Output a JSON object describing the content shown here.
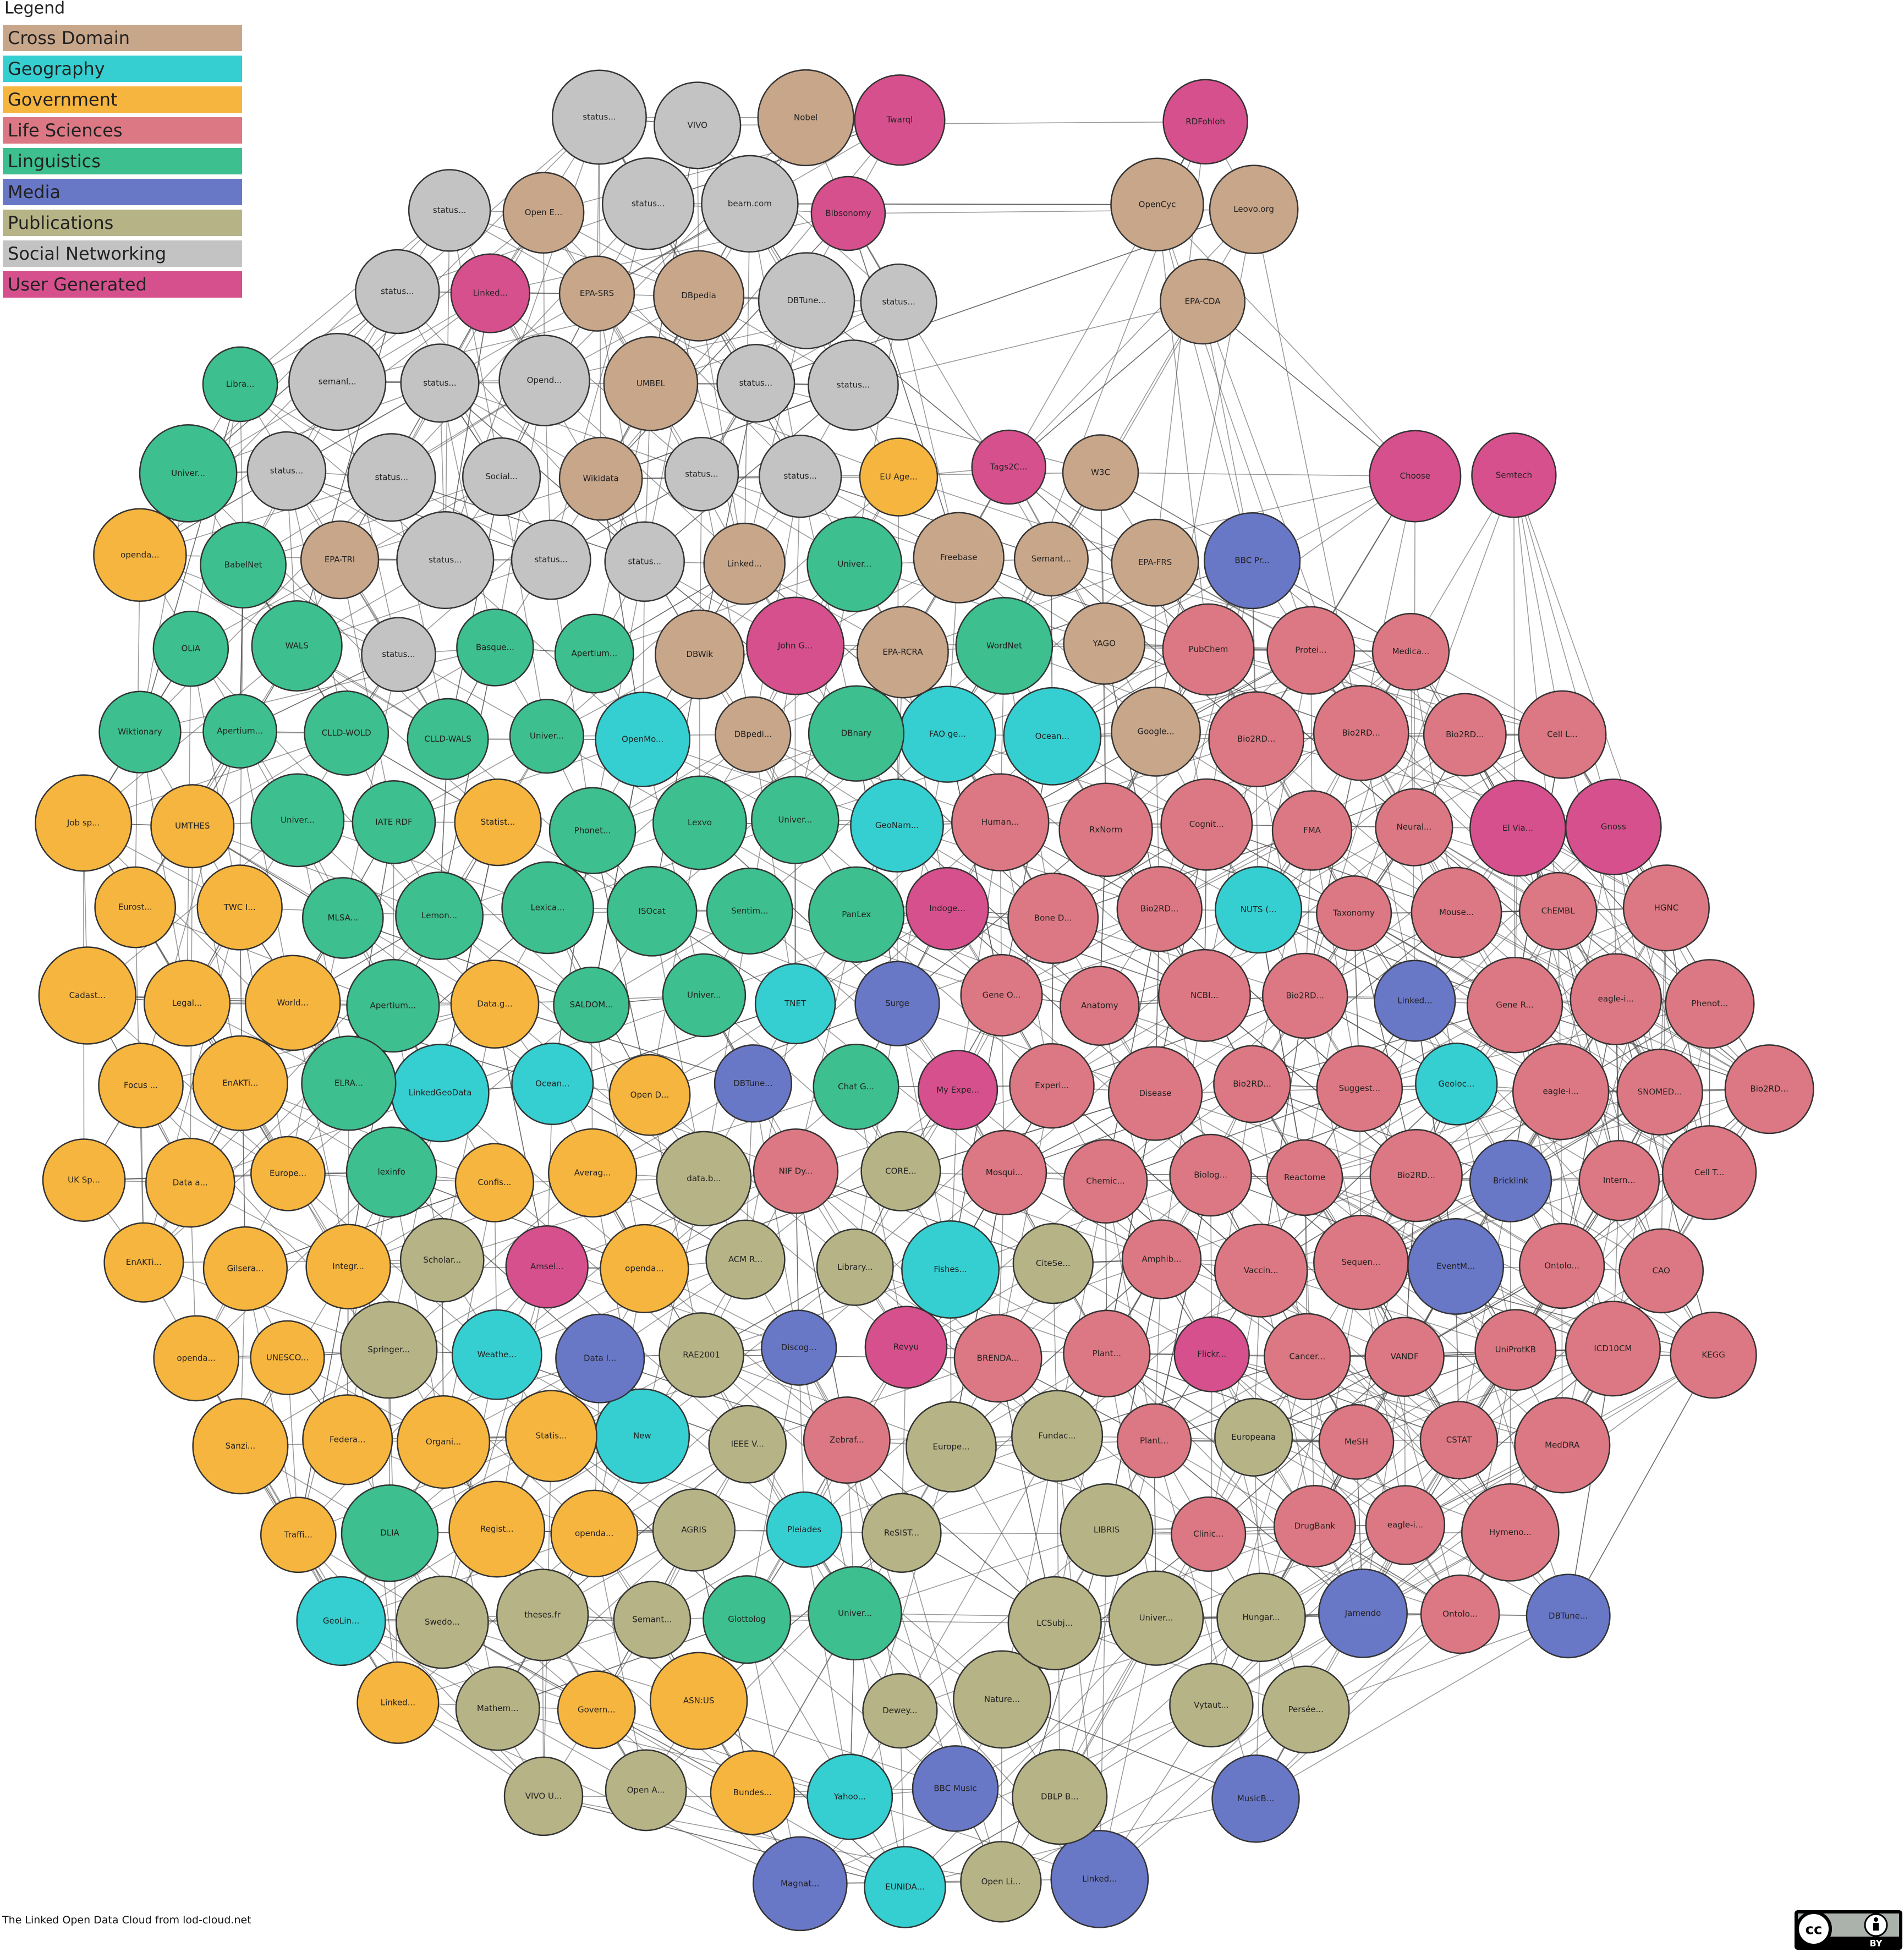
{
  "legend_title": "Legend",
  "groups": [
    {
      "name": "Cross Domain",
      "color": "#c8a68a",
      "nodes": [
        "DBpedia",
        "Wikidata",
        "YAGO",
        "Freebase",
        "EPA-RCRA",
        "EPA-SRS",
        "EPA-CDA",
        "EPA-FRS",
        "EPA-TRI",
        "OpenCyc",
        "UMBEL",
        "W3C",
        "DBpedi...",
        "Linked...",
        "Leovo.org",
        "Google...",
        "Semant...",
        "Nobel",
        "DBWik",
        "Open E..."
      ]
    },
    {
      "name": "Geography",
      "color": "#35cfd1",
      "nodes": [
        "GeoNam...",
        "LinkedGeoData",
        "Geoloc...",
        "NUTS (...",
        "EUNIDA...",
        "Ocean...",
        "Weathe...",
        "Yahoo...",
        "OpenMo...",
        "FAO ge...",
        "TNET",
        "Pleiades",
        "Fishes...",
        "Ocean...",
        "New",
        "GeoLin..."
      ]
    },
    {
      "name": "Government",
      "color": "#f6b53e",
      "nodes": [
        "openda...",
        "openda...",
        "openda...",
        "openda...",
        "EU Age...",
        "Eurost...",
        "UK Sp...",
        "Regist...",
        "Statist...",
        "Linked...",
        "Open D...",
        "Data.g...",
        "EnAKTi...",
        "UNESCO...",
        "Bundes...",
        "TWC I...",
        "Traffi...",
        "ASN:US",
        "Organi...",
        "Govern...",
        "World...",
        "Federa...",
        "Job sp...",
        "Cadast...",
        "Integr...",
        "Sanzi...",
        "Confis...",
        "Data a...",
        "Focus ...",
        "Averag...",
        "UMTHES",
        "Gilsera...",
        "Europe...",
        "Legal...",
        "Statis...",
        "EnAKTi..."
      ]
    },
    {
      "name": "Life Sciences",
      "color": "#dc7883",
      "nodes": [
        "Bio2RD...",
        "Bio2RD...",
        "Bio2RD...",
        "Bio2RD...",
        "Bio2RD...",
        "Bio2RD...",
        "Bio2RD...",
        "Bio2RD...",
        "eagle-i...",
        "eagle-i...",
        "eagle-i...",
        "UniProtKB",
        "ChEMBL",
        "MeSH",
        "NCBI...",
        "Gene O...",
        "Human...",
        "Cell L...",
        "Plant...",
        "Ontolo...",
        "Ontolo...",
        "SNOMED...",
        "MedDRA",
        "Cancer...",
        "Anatomy",
        "PubChem",
        "DrugBank",
        "Reactome",
        "KEGG",
        "HGNC",
        "Taxonomy",
        "ICD10CM",
        "Mouse...",
        "Vaccin...",
        "Chemic...",
        "Protei...",
        "Disease",
        "Zebraf...",
        "VANDF",
        "RxNorm",
        "Bone D...",
        "CAO",
        "Cell T...",
        "Phenot...",
        "Amphib...",
        "Sequen...",
        "FMA",
        "Biolog...",
        "Experi...",
        "NIF Dy...",
        "Suggest...",
        "Medica...",
        "Gene R...",
        "Intern...",
        "CSTAT",
        "Cognit...",
        "Plant...",
        "Clinic...",
        "Neural...",
        "Hymeno...",
        "BRENDA...",
        "Mosqui..."
      ]
    },
    {
      "name": "Linguistics",
      "color": "#3dbf90",
      "nodes": [
        "Univer...",
        "Univer...",
        "Univer...",
        "Univer...",
        "Univer...",
        "Univer...",
        "Univer...",
        "Apertium...",
        "Apertium...",
        "Apertium...",
        "Lexvo",
        "WordNet",
        "Glottolog",
        "PanLex",
        "BabelNet",
        "OLiA",
        "WALS",
        "CLLD-WALS",
        "IATE RDF",
        "Wiktionary",
        "ELRA...",
        "Lemon...",
        "DBnary",
        "lexinfo",
        "ISOcat",
        "CLLD-WOLD",
        "DLIA",
        "Sentim...",
        "Phonet...",
        "Chat G...",
        "SALDOM...",
        "Lexica...",
        "Basque...",
        "MLSA...",
        "Libra..."
      ]
    },
    {
      "name": "Media",
      "color": "#6977c7",
      "nodes": [
        "DBTune...",
        "DBTune...",
        "BBC Music",
        "MusicB...",
        "Jamendo",
        "Linked...",
        "BBC Pr...",
        "Magnat...",
        "Discog...",
        "Data I...",
        "Bricklink",
        "Surge",
        "EventM...",
        "Linked..."
      ]
    },
    {
      "name": "Publications",
      "color": "#b6b386",
      "nodes": [
        "DBLP B...",
        "ACM R...",
        "IEEE V...",
        "Open Li...",
        "Semant...",
        "CORE...",
        "Library...",
        "LIBRIS",
        "Dewey...",
        "theses.fr",
        "Europe...",
        "VIVO U...",
        "Europeana",
        "CiteSe...",
        "RAE2001",
        "Nature...",
        "Scholar...",
        "Univer...",
        "Open A...",
        "ReSIST...",
        "Vytaut...",
        "Fundac...",
        "Hungar...",
        "Mathem...",
        "LCSubj...",
        "data.b...",
        "Swedo...",
        "Persée...",
        "AGRIS",
        "Springer..."
      ]
    },
    {
      "name": "Social Networking",
      "color": "#c3c3c3",
      "nodes": [
        "status...",
        "status...",
        "status...",
        "status...",
        "status...",
        "status...",
        "status...",
        "status...",
        "status...",
        "status...",
        "status...",
        "status...",
        "status...",
        "status...",
        "status...",
        "status...",
        "Social...",
        "VIVO",
        "bearn.com",
        "DBTune...",
        "Opend...",
        "semanl..."
      ]
    },
    {
      "name": "User Generated",
      "color": "#d6508d",
      "nodes": [
        "Linked...",
        "Amsel...",
        "RDFohloh",
        "Flickr...",
        "My Expe...",
        "Revyu",
        "Tags2C...",
        "Bibsonomy",
        "Gnoss",
        "El Via...",
        "Semtech",
        "Twarql",
        "Choose",
        "Indoge...",
        "John G..."
      ]
    }
  ],
  "footer": "The Linked Open Data Cloud from lod-cloud.net",
  "badge": {
    "cc": "cc",
    "by": "BY"
  }
}
